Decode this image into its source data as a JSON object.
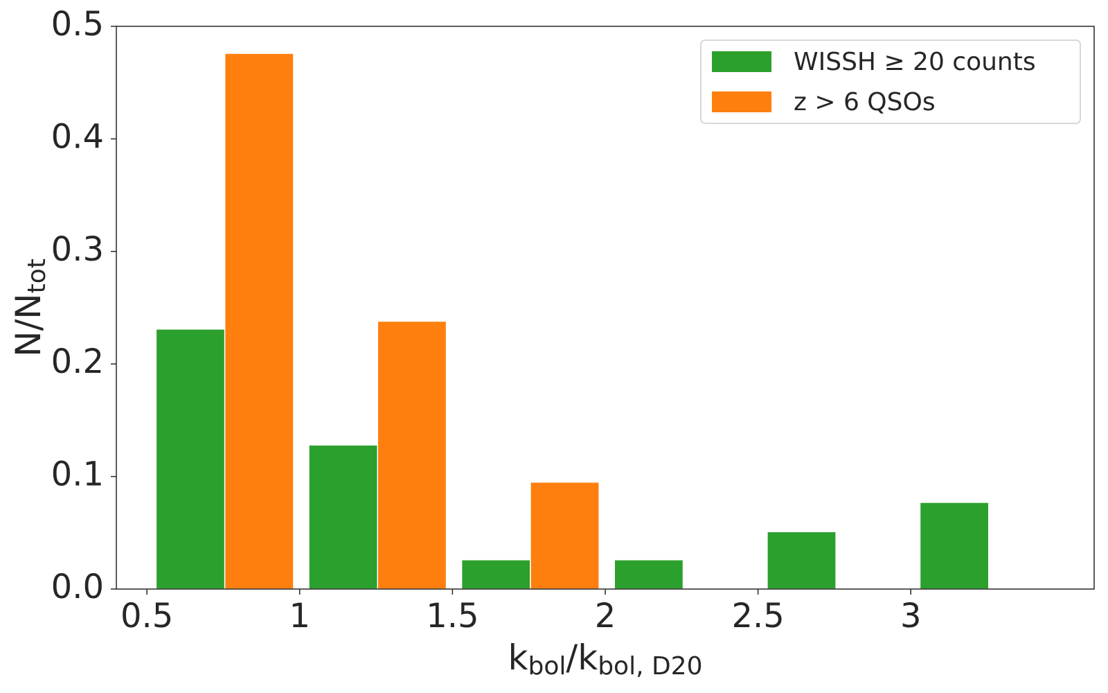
{
  "chart_data": {
    "type": "histogram",
    "bins": [
      0.53,
      1.03,
      1.53,
      2.03,
      2.53,
      3.03,
      3.53
    ],
    "series": [
      {
        "name": "WISSH ≥ 20 counts",
        "color": "#2ca02c",
        "values": [
          0.231,
          0.128,
          0.026,
          0.026,
          0.051,
          0.077
        ]
      },
      {
        "name": "z > 6 QSOs",
        "color": "#ff7f0e",
        "values": [
          0.476,
          0.238,
          0.095,
          0,
          0,
          0
        ]
      }
    ],
    "xlabel_parts": [
      {
        "text": "k"
      },
      {
        "text": "bol",
        "sub": true
      },
      {
        "text": "/k"
      },
      {
        "text": "bol, D20",
        "sub": true
      }
    ],
    "ylabel_parts": [
      {
        "text": "N/N"
      },
      {
        "text": "tot",
        "sub": true
      }
    ],
    "xlim": [
      0.4,
      3.6
    ],
    "xticks": [
      0.5,
      1,
      1.5,
      2,
      2.5,
      3
    ],
    "ylim": [
      0,
      0.5
    ],
    "yticks": [
      {
        "value": 0,
        "label": "0.0"
      },
      0.1,
      0.2,
      0.3,
      0.4,
      0.5
    ],
    "legend": "upper right"
  }
}
